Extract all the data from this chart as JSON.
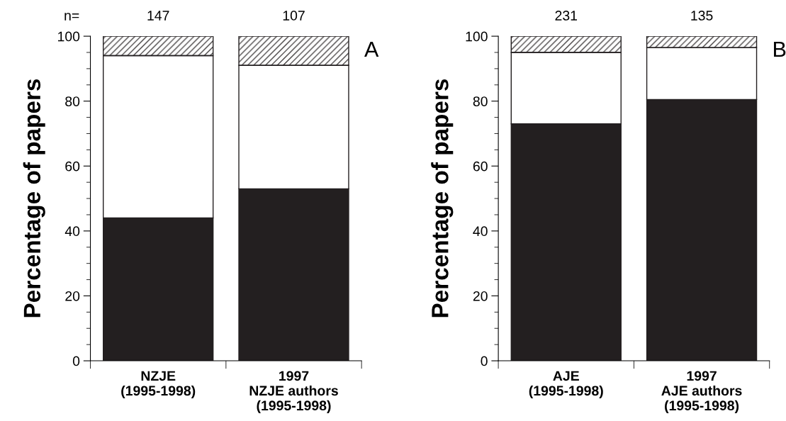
{
  "chart_data": [
    {
      "type": "bar",
      "title": "A",
      "ylabel": "Percentage of papers",
      "stacked": true,
      "categories": [
        "NZJE\n(1995-1998)",
        "1997\nNZJE authors\n(1995-1998)"
      ],
      "series": [
        {
          "color": "#231f20",
          "values": [
            44,
            53
          ]
        },
        {
          "color": "#ffffff",
          "values": [
            50,
            38
          ]
        },
        {
          "color": "#231f20",
          "values": [
            6,
            9
          ]
        }
      ],
      "ylim": [
        0,
        100
      ],
      "yticks": [
        0,
        20,
        40,
        60,
        80,
        100
      ],
      "grid": false,
      "legend": false,
      "annotations": [
        "n=",
        "147",
        "107"
      ]
    },
    {
      "type": "bar",
      "title": "B",
      "ylabel": "Percentage of papers",
      "stacked": true,
      "categories": [
        "AJE\n(1995-1998)",
        "1997\nAJE authors\n(1995-1998)"
      ],
      "series": [
        {
          "color": "#231f20",
          "values": [
            73,
            80.5
          ]
        },
        {
          "color": "#ffffff",
          "values": [
            22,
            16
          ]
        },
        {
          "color": "#231f20",
          "values": [
            5,
            3.5
          ]
        }
      ],
      "ylim": [
        0,
        100
      ],
      "yticks": [
        0,
        20,
        40,
        60,
        80,
        100
      ],
      "grid": false,
      "legend": false,
      "annotations": [
        "231",
        "135"
      ]
    }
  ]
}
